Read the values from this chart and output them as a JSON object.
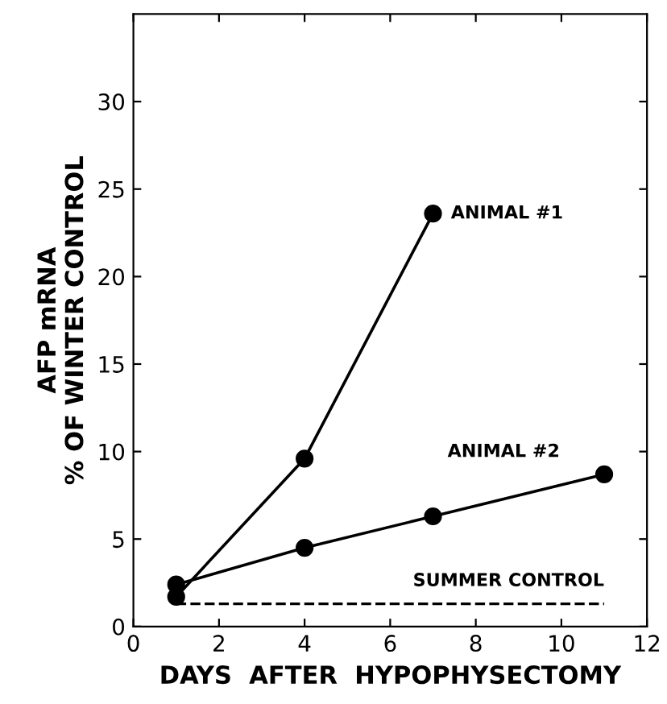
{
  "chart_data": {
    "type": "line",
    "xlabel": "DAYS  AFTER  HYPOPHYSECTOMY",
    "ylabel": "AFP mRNA\n% OF WINTER CONTROL",
    "series": [
      {
        "name": "ANIMAL #1",
        "color": "#000000",
        "x": [
          1,
          4,
          7
        ],
        "values": [
          1.7,
          9.6,
          23.6
        ],
        "marker": "circle"
      },
      {
        "name": "ANIMAL #2",
        "color": "#000000",
        "x": [
          1,
          4,
          7,
          11
        ],
        "values": [
          2.4,
          4.5,
          6.3,
          8.7
        ],
        "marker": "circle"
      }
    ],
    "ref_lines": [
      {
        "axis": "y",
        "value": 1.3,
        "label": "SUMMER CONTROL",
        "line_style": "dashed",
        "color": "#000000"
      }
    ],
    "xlim": [
      0,
      12
    ],
    "xticks": [
      0,
      2,
      4,
      6,
      8,
      10,
      12
    ],
    "ylim": [
      0,
      35
    ],
    "yticks": [
      0,
      5,
      10,
      15,
      20,
      25,
      30
    ],
    "grid": false,
    "legend": false,
    "line_style": "solid"
  }
}
